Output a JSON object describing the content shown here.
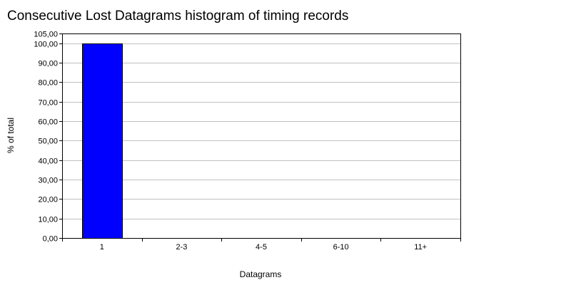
{
  "chart_data": {
    "type": "bar",
    "title": "Consecutive Lost Datagrams histogram of timing records",
    "xlabel": "Datagrams",
    "ylabel": "% of total",
    "categories": [
      "1",
      "2-3",
      "4-5",
      "6-10",
      "11+"
    ],
    "values": [
      100.0,
      0.0,
      0.0,
      0.0,
      0.0
    ],
    "ylim": [
      0,
      105
    ],
    "yticks": [
      "0,00",
      "10,00",
      "20,00",
      "30,00",
      "40,00",
      "50,00",
      "60,00",
      "70,00",
      "80,00",
      "90,00",
      "100,00",
      "105,00"
    ],
    "grid": true,
    "legend": "none",
    "colors": {
      "bar": "#0000ff",
      "bar_edge": "#000000",
      "grid": "#c0c0c0",
      "axis": "#000000"
    }
  }
}
